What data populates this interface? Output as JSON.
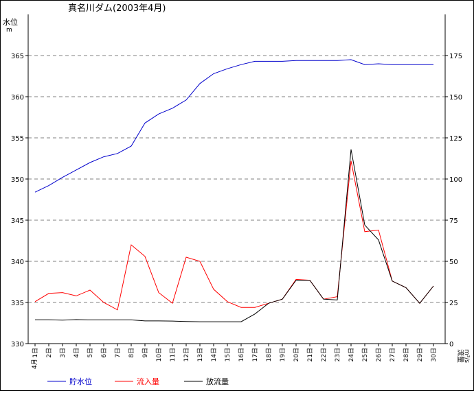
{
  "chart_data": {
    "type": "line",
    "title": "真名川ダム(2003年4月)",
    "y_left": {
      "label": "水位",
      "unit": "m",
      "min": 330,
      "max": 370,
      "ticks": [
        330,
        335,
        340,
        345,
        350,
        355,
        360,
        365
      ]
    },
    "y_right": {
      "label": "流量",
      "unit": "m³/s",
      "min": 0,
      "max": 200,
      "ticks": [
        0,
        25,
        50,
        75,
        100,
        125,
        150,
        175
      ]
    },
    "month_label": "4月",
    "categories": [
      "1日",
      "2日",
      "3日",
      "4日",
      "5日",
      "6日",
      "7日",
      "8日",
      "9日",
      "10日",
      "11日",
      "12日",
      "13日",
      "14日",
      "15日",
      "16日",
      "17日",
      "18日",
      "19日",
      "20日",
      "21日",
      "22日",
      "23日",
      "24日",
      "25日",
      "26日",
      "27日",
      "28日",
      "29日",
      "30日"
    ],
    "grid": "dashed horizontal",
    "legend_position": "bottom",
    "series": [
      {
        "name": "貯水位",
        "axis": "left",
        "color": "#0000cc",
        "values": [
          348.4,
          349.2,
          350.2,
          351.1,
          352.0,
          352.7,
          353.1,
          354.0,
          356.8,
          357.9,
          358.6,
          359.6,
          361.6,
          362.8,
          363.4,
          363.9,
          364.3,
          364.3,
          364.3,
          364.4,
          364.4,
          364.4,
          364.4,
          364.5,
          363.9,
          364.0,
          363.9,
          363.9,
          363.9,
          363.9
        ]
      },
      {
        "name": "流入量",
        "axis": "right",
        "color": "#ff0000",
        "values": [
          25.5,
          30.5,
          31,
          29,
          32.5,
          25,
          20.5,
          60,
          53,
          31,
          24.5,
          52.5,
          50,
          33,
          25.5,
          22,
          22,
          24.5,
          27,
          39,
          38.5,
          27,
          28.5,
          111,
          68,
          69,
          38,
          34,
          24.5,
          35
        ]
      },
      {
        "name": "放流量",
        "axis": "right",
        "color": "#000000",
        "values": [
          14.5,
          14.5,
          14.3,
          14.6,
          14.4,
          14.4,
          14.4,
          14.4,
          13.8,
          13.8,
          13.7,
          13.4,
          13.3,
          13.3,
          13.3,
          13.3,
          18,
          24.5,
          27,
          38.5,
          38.5,
          27,
          26.5,
          118,
          72,
          63,
          38,
          34,
          24.5,
          35
        ]
      }
    ]
  }
}
